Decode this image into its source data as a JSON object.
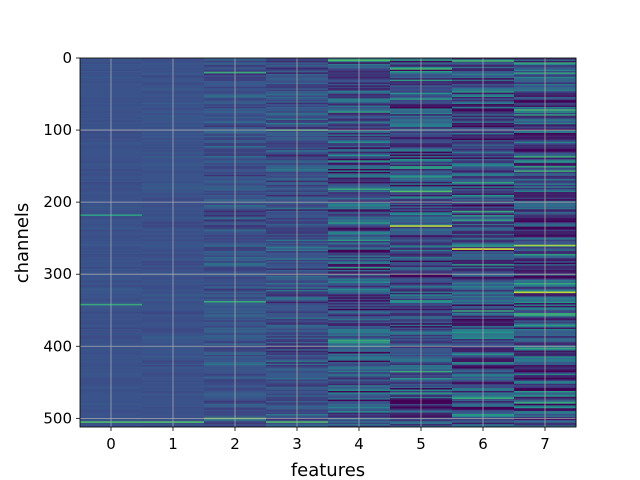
{
  "chart_data": {
    "type": "heatmap",
    "title": "",
    "xlabel": "features",
    "ylabel": "channels",
    "x_categories": [
      0,
      1,
      2,
      3,
      4,
      5,
      6,
      7
    ],
    "xticks": [
      "0",
      "1",
      "2",
      "3",
      "4",
      "5",
      "6",
      "7"
    ],
    "yticks": [
      "0",
      "100",
      "200",
      "300",
      "400",
      "500"
    ],
    "ylim": [
      512,
      0
    ],
    "n_channels": 512,
    "grid": true,
    "colormap": "viridis",
    "colormap_stops": [
      "#440154",
      "#3b528b",
      "#21918c",
      "#5ec962",
      "#fde725"
    ],
    "column_variation": [
      0.03,
      0.04,
      0.12,
      0.16,
      0.32,
      0.32,
      0.36,
      0.4
    ],
    "highlights": [
      {
        "feature": 0,
        "channel": 218,
        "value": 0.55
      },
      {
        "feature": 0,
        "channel": 342,
        "value": 0.6
      },
      {
        "feature": 0,
        "channel": 505,
        "value": 0.7
      },
      {
        "feature": 1,
        "channel": 505,
        "value": 0.7
      },
      {
        "feature": 2,
        "channel": 20,
        "value": 0.6
      },
      {
        "feature": 2,
        "channel": 338,
        "value": 0.6
      },
      {
        "feature": 2,
        "channel": 500,
        "value": 0.75
      },
      {
        "feature": 3,
        "channel": 100,
        "value": 0.6
      },
      {
        "feature": 3,
        "channel": 505,
        "value": 0.7
      },
      {
        "feature": 4,
        "channel": 3,
        "value": 0.7
      },
      {
        "feature": 4,
        "channel": 182,
        "value": 0.6
      },
      {
        "feature": 4,
        "channel": 267,
        "value": 0.0
      },
      {
        "feature": 4,
        "channel": 392,
        "value": 0.6
      },
      {
        "feature": 5,
        "channel": 15,
        "value": 0.65
      },
      {
        "feature": 5,
        "channel": 185,
        "value": 0.7
      },
      {
        "feature": 5,
        "channel": 233,
        "value": 0.9
      },
      {
        "feature": 5,
        "channel": 282,
        "value": 0.0
      },
      {
        "feature": 5,
        "channel": 435,
        "value": 0.6
      },
      {
        "feature": 6,
        "channel": 4,
        "value": 0.65
      },
      {
        "feature": 6,
        "channel": 213,
        "value": 0.6
      },
      {
        "feature": 6,
        "channel": 265,
        "value": 0.95
      },
      {
        "feature": 6,
        "channel": 472,
        "value": 0.6
      },
      {
        "feature": 7,
        "channel": 72,
        "value": 0.65
      },
      {
        "feature": 7,
        "channel": 137,
        "value": 0.6
      },
      {
        "feature": 7,
        "channel": 260,
        "value": 0.85
      },
      {
        "feature": 7,
        "channel": 325,
        "value": 0.9
      },
      {
        "feature": 7,
        "channel": 478,
        "value": 0.6
      }
    ]
  }
}
